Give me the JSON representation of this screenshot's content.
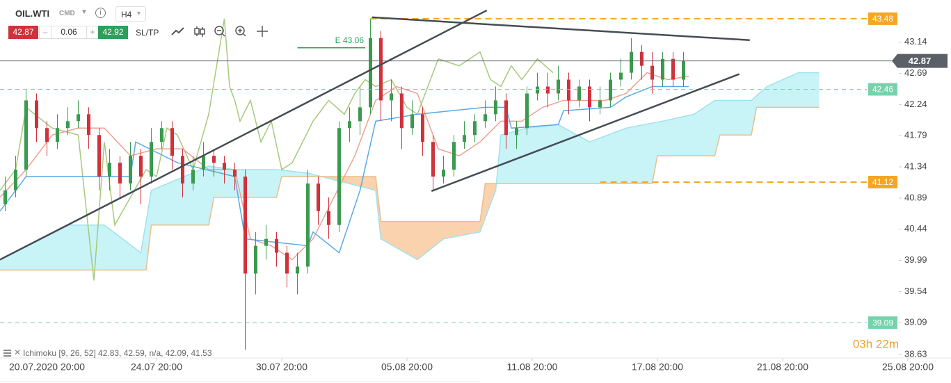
{
  "chart_data": {
    "type": "candlestick",
    "symbol": "OIL.WTI",
    "market": "CMD",
    "timeframe": "H4",
    "bid": 42.87,
    "spread": 0.06,
    "ask": 42.92,
    "sltp": "SL/TP",
    "indicator_label": "Ichimoku [9, 26, 52] 42.83, 42.59, n/a, 42.09, 41.53",
    "timer": "03h 22m",
    "xlim": [
      0,
      182
    ],
    "ylim": [
      38.58,
      43.75
    ],
    "yticks": [
      43.14,
      42.69,
      42.24,
      41.79,
      41.34,
      40.89,
      40.44,
      39.99,
      39.54,
      39.09,
      38.63
    ],
    "xticks": [
      {
        "value": 9,
        "label": "20.07.2020 20:00"
      },
      {
        "value": 30,
        "label": "24.07 20:00"
      },
      {
        "value": 54,
        "label": "30.07 20:00"
      },
      {
        "value": 78,
        "label": "05.08 20:00"
      },
      {
        "value": 102,
        "label": "11.08 20:00"
      },
      {
        "value": 126,
        "label": "17.08 20:00"
      },
      {
        "value": 150,
        "label": "21.08 20:00"
      },
      {
        "value": 174,
        "label": "25.08 20:00"
      }
    ],
    "up_color": "#3a9a4f",
    "down_color": "#d0313b",
    "x": [
      1,
      3,
      5,
      7,
      9,
      11,
      13,
      15,
      17,
      19,
      21,
      23,
      25,
      27,
      29,
      31,
      33,
      35,
      37,
      39,
      41,
      43,
      45,
      47,
      49,
      51,
      53,
      55,
      57,
      59,
      61,
      63,
      65,
      67,
      69,
      71,
      73,
      75,
      77,
      79,
      81,
      83,
      85,
      87,
      89,
      91,
      93,
      95,
      97,
      99,
      101,
      103,
      105,
      107,
      109,
      111,
      113,
      115,
      117,
      119,
      121,
      123,
      125,
      127,
      129,
      131
    ],
    "open": [
      40.8,
      41.0,
      41.3,
      42.3,
      41.9,
      41.7,
      41.9,
      42.0,
      42.1,
      41.8,
      41.2,
      41.4,
      41.1,
      41.5,
      41.2,
      41.7,
      41.9,
      41.5,
      41.1,
      41.3,
      41.5,
      41.4,
      41.3,
      41.2,
      39.8,
      40.2,
      40.3,
      40.1,
      39.8,
      39.9,
      41.1,
      40.7,
      40.5,
      41.9,
      42.0,
      42.2,
      43.2,
      42.3,
      42.4,
      41.9,
      42.1,
      41.7,
      41.2,
      41.3,
      41.7,
      41.8,
      42.0,
      42.1,
      42.3,
      41.8,
      41.9,
      42.4,
      42.5,
      42.4,
      42.6,
      42.3,
      42.5,
      42.2,
      42.3,
      42.6,
      42.7,
      43.0,
      42.8,
      42.6,
      42.9,
      42.6
    ],
    "high": [
      41.2,
      41.5,
      42.45,
      42.4,
      42.0,
      42.1,
      42.2,
      42.3,
      42.2,
      41.9,
      41.6,
      41.5,
      41.7,
      41.6,
      41.9,
      42.0,
      42.0,
      41.6,
      41.5,
      41.7,
      41.6,
      41.5,
      41.4,
      41.3,
      40.4,
      40.5,
      40.4,
      40.2,
      40.1,
      41.3,
      41.2,
      40.9,
      42.0,
      42.2,
      42.5,
      43.48,
      43.3,
      42.6,
      42.5,
      42.3,
      42.2,
      41.8,
      41.5,
      41.8,
      42.0,
      42.1,
      42.3,
      42.5,
      42.4,
      42.0,
      42.5,
      42.7,
      42.7,
      42.8,
      42.7,
      42.6,
      42.6,
      42.5,
      42.7,
      42.9,
      43.2,
      43.1,
      43.0,
      43.0,
      43.0,
      43.0
    ],
    "low": [
      40.7,
      40.9,
      41.2,
      41.7,
      41.5,
      41.6,
      41.8,
      41.9,
      41.6,
      41.0,
      41.0,
      40.9,
      41.0,
      40.8,
      41.1,
      41.6,
      41.3,
      40.9,
      41.0,
      41.2,
      41.2,
      41.1,
      41.0,
      38.7,
      39.5,
      40.0,
      39.9,
      39.6,
      39.5,
      39.8,
      40.5,
      40.3,
      40.4,
      41.7,
      41.8,
      42.1,
      42.0,
      42.0,
      41.6,
      41.8,
      41.5,
      41.0,
      41.1,
      41.2,
      41.6,
      41.7,
      41.9,
      42.0,
      41.6,
      41.6,
      41.8,
      42.3,
      42.2,
      42.3,
      42.1,
      42.2,
      42.0,
      42.1,
      42.2,
      42.5,
      42.6,
      42.6,
      42.4,
      42.5,
      42.5,
      42.5
    ],
    "close": [
      41.0,
      41.3,
      42.3,
      41.9,
      41.7,
      41.9,
      42.0,
      42.1,
      41.8,
      41.2,
      41.4,
      41.1,
      41.5,
      41.2,
      41.7,
      41.9,
      41.5,
      41.1,
      41.3,
      41.5,
      41.4,
      41.3,
      41.2,
      39.8,
      40.2,
      40.3,
      40.1,
      39.8,
      39.9,
      41.1,
      40.7,
      40.5,
      41.9,
      42.0,
      42.2,
      43.2,
      42.3,
      42.4,
      41.9,
      42.1,
      41.7,
      41.2,
      41.3,
      41.7,
      41.8,
      42.0,
      42.1,
      42.3,
      41.8,
      41.9,
      42.4,
      42.5,
      42.4,
      42.6,
      42.3,
      42.5,
      42.2,
      42.3,
      42.6,
      42.7,
      43.0,
      42.8,
      42.6,
      42.9,
      42.6,
      42.87
    ],
    "cloud": {
      "up_color": "#c8f3f7",
      "down_color": "#fbd2ae",
      "span_a": {
        "color": "#9fe3ec",
        "x": [
          0,
          13,
          20,
          27,
          29,
          40,
          45,
          53,
          59,
          72,
          73,
          80,
          85,
          92,
          95,
          96,
          101,
          107,
          113,
          120,
          127,
          133,
          137,
          144,
          147,
          153,
          157
        ],
        "values": [
          40.0,
          40.5,
          40.5,
          40.1,
          41.0,
          41.35,
          41.3,
          41.3,
          41.25,
          41.0,
          40.3,
          40.0,
          40.3,
          40.4,
          41.0,
          41.8,
          41.9,
          41.95,
          41.7,
          41.9,
          42.0,
          42.1,
          42.3,
          42.3,
          42.5,
          42.7,
          42.7
        ]
      },
      "span_b": {
        "color": "#e8bf8a",
        "x": [
          0,
          28,
          29,
          40,
          41,
          53,
          54,
          72,
          73,
          92,
          93,
          125,
          126,
          137,
          138,
          144,
          145,
          157
        ],
        "values": [
          39.85,
          39.85,
          40.5,
          40.5,
          40.9,
          40.9,
          41.2,
          41.2,
          40.55,
          40.55,
          41.1,
          41.1,
          41.5,
          41.5,
          41.8,
          41.8,
          42.2,
          42.2
        ]
      }
    },
    "lines": [
      {
        "color": "#a5c97c",
        "x": [
          0,
          3,
          5,
          10,
          15,
          18,
          20,
          22,
          25,
          28,
          30,
          32,
          34,
          37,
          40,
          43,
          44,
          45,
          46,
          48,
          50,
          52,
          54,
          56,
          58,
          60,
          63,
          66,
          68,
          70,
          72,
          75,
          78,
          80,
          84,
          88,
          92,
          94,
          96,
          98,
          100,
          103,
          106
        ],
        "values": [
          41.0,
          41.3,
          42.2,
          41.9,
          41.8,
          39.7,
          41.7,
          40.5,
          40.9,
          41.3,
          41.2,
          41.9,
          41.8,
          41.3,
          42.1,
          43.48,
          42.5,
          42.3,
          42.0,
          42.3,
          41.7,
          42.0,
          41.3,
          41.4,
          41.7,
          42.0,
          42.3,
          42.1,
          42.4,
          42.6,
          42.5,
          42.6,
          42.2,
          42.1,
          42.9,
          42.8,
          43.0,
          42.6,
          42.5,
          42.8,
          42.6,
          42.9,
          42.7
        ]
      },
      {
        "color": "#f0a08e",
        "x": [
          0,
          5,
          10,
          15,
          20,
          25,
          30,
          35,
          40,
          45,
          48,
          52,
          56,
          60,
          64,
          68,
          72,
          76,
          80,
          84,
          88,
          92,
          96,
          100,
          104,
          108,
          112,
          116,
          120,
          124,
          128,
          132
        ],
        "values": [
          40.9,
          41.3,
          41.8,
          41.9,
          41.9,
          41.5,
          41.6,
          41.6,
          41.3,
          41.3,
          40.3,
          40.2,
          40.0,
          40.3,
          40.9,
          41.5,
          42.3,
          42.5,
          42.4,
          41.6,
          41.5,
          41.7,
          42.0,
          42.0,
          42.2,
          42.3,
          42.3,
          42.3,
          42.4,
          42.7,
          42.6,
          42.65
        ]
      },
      {
        "color": "#5aa9e6",
        "x": [
          0,
          5,
          25,
          26,
          34,
          45,
          47,
          59,
          60,
          65,
          69,
          72,
          80,
          93,
          97,
          98,
          107,
          108,
          117,
          120,
          125,
          132
        ],
        "values": [
          40.7,
          41.2,
          41.2,
          41.7,
          41.4,
          41.2,
          40.3,
          40.2,
          40.4,
          40.1,
          41.0,
          42.0,
          42.1,
          42.2,
          42.2,
          41.9,
          41.95,
          42.15,
          42.2,
          42.35,
          42.5,
          42.5
        ]
      }
    ],
    "trendlines": [
      {
        "color": "#444c55",
        "x": [
          0,
          93.3
        ],
        "values": [
          40.0,
          43.6
        ]
      },
      {
        "color": "#444c55",
        "x": [
          71.3,
          143.7
        ],
        "values": [
          43.5,
          43.17
        ]
      },
      {
        "color": "#444c55",
        "x": [
          82.7,
          141.7
        ],
        "values": [
          40.99,
          42.68
        ]
      }
    ],
    "entry": {
      "label": "E 43.06",
      "value": 43.06,
      "x": [
        57,
        70
      ],
      "color": "#2e9e5b"
    },
    "levels": [
      {
        "value": 43.48,
        "start": 71,
        "color": "#f5a623",
        "style": "dashed-bold"
      },
      {
        "value": 42.46,
        "start": 0,
        "color": "#74d3ac",
        "style": "dashed"
      },
      {
        "value": 41.12,
        "start": 115,
        "color": "#f5a623",
        "style": "dashed-bold"
      },
      {
        "value": 39.09,
        "start": 0,
        "color": "#74d3ac",
        "style": "dashed"
      }
    ],
    "current": {
      "value": 42.87,
      "color": "#5b6068"
    }
  }
}
